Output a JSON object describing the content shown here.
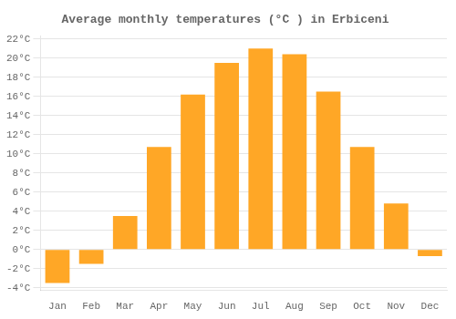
{
  "chart_data": {
    "type": "bar",
    "title": "Average monthly temperatures (°C ) in Erbiceni",
    "categories": [
      "Jan",
      "Feb",
      "Mar",
      "Apr",
      "May",
      "Jun",
      "Jul",
      "Aug",
      "Sep",
      "Oct",
      "Nov",
      "Dec"
    ],
    "values": [
      -3.5,
      -1.5,
      3.5,
      10.7,
      16.2,
      19.5,
      21.0,
      20.4,
      16.5,
      10.7,
      4.8,
      -0.7
    ],
    "color": "#FFA726",
    "ylim": [
      -4.3,
      22.3
    ],
    "yticks": [
      {
        "value": -4,
        "label": "-4°C"
      },
      {
        "value": -2,
        "label": "-2°C"
      },
      {
        "value": 0,
        "label": "0°C"
      },
      {
        "value": 2,
        "label": "2°C"
      },
      {
        "value": 4,
        "label": "4°C"
      },
      {
        "value": 6,
        "label": "6°C"
      },
      {
        "value": 8,
        "label": "8°C"
      },
      {
        "value": 10,
        "label": "10°C"
      },
      {
        "value": 12,
        "label": "12°C"
      },
      {
        "value": 14,
        "label": "14°C"
      },
      {
        "value": 16,
        "label": "16°C"
      },
      {
        "value": 18,
        "label": "18°C"
      },
      {
        "value": 20,
        "label": "20°C"
      },
      {
        "value": 22,
        "label": "22°C"
      }
    ],
    "grid": true
  }
}
